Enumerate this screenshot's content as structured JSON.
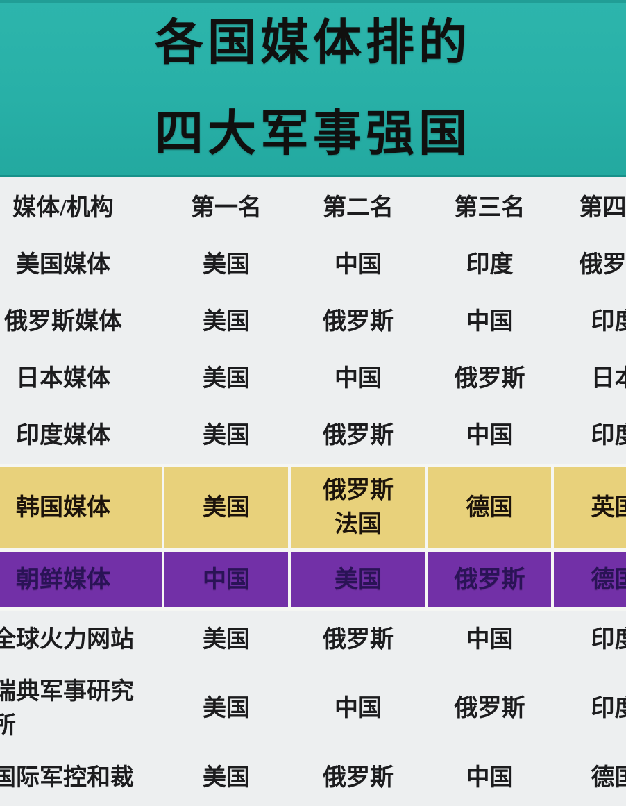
{
  "title": {
    "line1": "各国媒体排的",
    "line2": "四大军事强国"
  },
  "chart_data": {
    "type": "table",
    "title": "各国媒体排的四大军事强国",
    "columns": [
      "媒体/机构",
      "第一名",
      "第二名",
      "第三名",
      "第四名"
    ],
    "rows": [
      {
        "name": "美国媒体",
        "ranks": [
          "美国",
          "中国",
          "印度",
          "俄罗斯"
        ],
        "highlight": "none"
      },
      {
        "name": "俄罗斯媒体",
        "ranks": [
          "美国",
          "俄罗斯",
          "中国",
          "印度"
        ],
        "highlight": "none"
      },
      {
        "name": "日本媒体",
        "ranks": [
          "美国",
          "中国",
          "俄罗斯",
          "日本"
        ],
        "highlight": "none"
      },
      {
        "name": "印度媒体",
        "ranks": [
          "美国",
          "俄罗斯",
          "中国",
          "印度"
        ],
        "highlight": "none"
      },
      {
        "name": "韩国媒体",
        "ranks": [
          "美国",
          "俄罗斯\n法国",
          "德国",
          "英国"
        ],
        "highlight": "yellow"
      },
      {
        "name": "朝鲜媒体",
        "ranks": [
          "中国",
          "美国",
          "俄罗斯",
          "德国"
        ],
        "highlight": "purple"
      },
      {
        "name": "全球火力网站",
        "ranks": [
          "美国",
          "俄罗斯",
          "中国",
          "印度"
        ],
        "highlight": "none"
      },
      {
        "name": "瑞典军事研究\n所",
        "ranks": [
          "美国",
          "中国",
          "俄罗斯",
          "印度"
        ],
        "highlight": "none"
      },
      {
        "name": "国际军控和裁",
        "ranks": [
          "美国",
          "俄罗斯",
          "中国",
          "德国"
        ],
        "highlight": "none"
      }
    ]
  },
  "colors": {
    "banner_teal": "#28b0a7",
    "banner_edge": "#17918a",
    "page_background": "#edeff0",
    "highlight_yellow": "#e8d17b",
    "highlight_purple": "#7230a7",
    "purple_text": "#2a1356",
    "text": "#1c1c1e"
  }
}
